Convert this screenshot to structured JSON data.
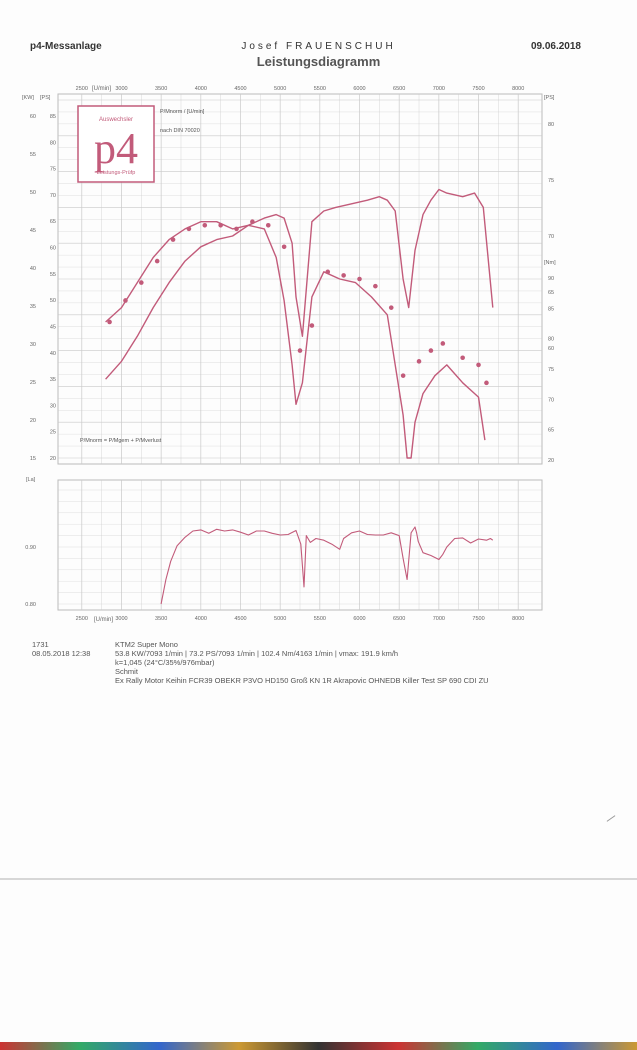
{
  "header": {
    "system": "p4-Messanlage",
    "company": "Josef FRAUENSCHUH",
    "title": "Leistungsdiagramm",
    "date": "09.06.2018"
  },
  "logo": {
    "text": "p4",
    "top_text": "Auswechsler",
    "bottom_text": "Leistungs-Prüfp"
  },
  "colors": {
    "curve": "#c25b7a",
    "grid": "#c9c9c9",
    "frame": "#bbbbbb"
  },
  "chart_data": [
    {
      "type": "line",
      "title": "Leistungsdiagramm",
      "legend": [
        "P/Mnorm / [U/min]",
        "nach DIN 70020"
      ],
      "formula": "P/Mnorm = P/Mgem + P/Mverlust",
      "x_unit": "[U/min]",
      "x_ticks": [
        "2500",
        "3000",
        "3500",
        "4000",
        "4500",
        "5000",
        "5500",
        "6000",
        "6500",
        "7000",
        "7500",
        "8000"
      ],
      "left_axis_units": [
        "[KW]",
        "[PS]"
      ],
      "left_axis_kw": [
        "15",
        "20",
        "25",
        "30",
        "35",
        "40",
        "45",
        "50",
        "55",
        "60"
      ],
      "left_axis_ps": [
        "20",
        "25",
        "30",
        "35",
        "40",
        "45",
        "50",
        "55",
        "60",
        "65",
        "70",
        "75",
        "80",
        "85"
      ],
      "right_axis_ps_unit": "[PS]",
      "right_axis_ps": [
        "60",
        "65",
        "70",
        "75",
        "80"
      ],
      "right_axis_nm_unit": "[Nm]",
      "right_axis_nm": [
        "20",
        "65",
        "70",
        "75",
        "80",
        "85",
        "90"
      ],
      "xlim": [
        2200,
        8300
      ],
      "ylim": [
        0,
        100
      ],
      "series": [
        {
          "label": "P",
          "x": [
            2800,
            3000,
            3200,
            3400,
            3600,
            3800,
            4000,
            4200,
            4400,
            4600,
            4800,
            4950,
            5050,
            5150,
            5200,
            5280,
            5400,
            5550,
            5700,
            5900,
            6100,
            6250,
            6350,
            6450,
            6550,
            6620,
            6700,
            6800,
            6900,
            7000,
            7100,
            7300,
            7450,
            7560,
            7680
          ],
          "y": [
            22,
            27,
            34,
            42,
            49,
            55,
            59,
            61,
            62,
            65,
            67,
            68,
            67,
            60,
            45,
            34,
            66,
            69,
            70,
            71,
            72,
            73,
            72,
            69,
            50,
            42,
            58,
            68,
            72,
            75,
            74,
            73,
            74,
            70,
            42
          ]
        },
        {
          "label": "M",
          "x": [
            2800,
            3000,
            3200,
            3400,
            3600,
            3800,
            4000,
            4200,
            4400,
            4600,
            4800,
            4950,
            5050,
            5150,
            5200,
            5280,
            5400,
            5550,
            5750,
            5950,
            6150,
            6350,
            6550,
            6600,
            6650,
            6700,
            6800,
            6950,
            7100,
            7300,
            7500,
            7580
          ],
          "y": [
            38,
            42,
            49,
            56,
            61,
            64,
            66,
            66,
            64,
            65,
            64,
            56,
            44,
            26,
            15,
            21,
            45,
            52,
            50,
            49,
            45,
            40,
            12,
            0,
            0,
            10,
            18,
            23,
            26,
            21,
            17,
            5
          ]
        }
      ],
      "points": [
        {
          "series": "M",
          "x": [
            2850,
            3050,
            3250,
            3450,
            3650,
            3850,
            4050,
            4250,
            4450,
            4650,
            4850,
            5050,
            5250,
            5400,
            5600,
            5800,
            6000,
            6200,
            6400,
            6550,
            6750,
            6900,
            7050,
            7300,
            7500,
            7600
          ],
          "y": [
            38,
            44,
            49,
            55,
            61,
            64,
            65,
            65,
            64,
            66,
            65,
            59,
            30,
            37,
            52,
            51,
            50,
            48,
            42,
            23,
            27,
            30,
            32,
            28,
            26,
            21
          ]
        }
      ]
    },
    {
      "type": "line",
      "ylabel": "[La]",
      "y_ticks": [
        "0.80",
        "0.90"
      ],
      "x_ticks": [
        "2500",
        "3000",
        "3500",
        "4000",
        "4500",
        "5000",
        "5500",
        "6000",
        "6500",
        "7000",
        "7500",
        "8000"
      ],
      "x_unit": "[U/min]",
      "xlim": [
        2200,
        8300
      ],
      "ylim": [
        0.8,
        1.0
      ],
      "series": [
        {
          "label": "La",
          "x": [
            3500,
            3560,
            3620,
            3700,
            3800,
            3900,
            4000,
            4100,
            4200,
            4300,
            4400,
            4500,
            4600,
            4700,
            4800,
            4900,
            5000,
            5100,
            5200,
            5260,
            5300,
            5330,
            5380,
            5450,
            5550,
            5650,
            5750,
            5800,
            5900,
            6000,
            6100,
            6200,
            6300,
            6400,
            6500,
            6550,
            6600,
            6650,
            6700,
            6720,
            6740,
            6800,
            6900,
            7000,
            7050,
            7100,
            7200,
            7300,
            7400,
            7500,
            7600,
            7650,
            7680
          ],
          "y": [
            0.8,
            0.843,
            0.875,
            0.902,
            0.917,
            0.928,
            0.93,
            0.924,
            0.931,
            0.928,
            0.93,
            0.926,
            0.921,
            0.928,
            0.928,
            0.924,
            0.921,
            0.922,
            0.929,
            0.905,
            0.83,
            0.92,
            0.908,
            0.915,
            0.912,
            0.905,
            0.896,
            0.915,
            0.925,
            0.928,
            0.922,
            0.921,
            0.921,
            0.925,
            0.92,
            0.88,
            0.843,
            0.925,
            0.935,
            0.925,
            0.91,
            0.89,
            0.885,
            0.878,
            0.887,
            0.9,
            0.915,
            0.916,
            0.907,
            0.914,
            0.912,
            0.915,
            0.912
          ]
        }
      ]
    }
  ],
  "info": {
    "id": "1731",
    "vehicle": "KTM2 Super Mono",
    "timestamp": "08.05.2018  12:38",
    "summary": "53.8 KW/7093 1/min  |  73.2 PS/7093 1/min  |  102.4 Nm/4163 1/min | vmax: 191.9 km/h",
    "conditions": "k=1,045 (24°C/35%/976mbar)",
    "customer": "Schmit",
    "notes": "Ex Rally Motor Keihin FCR39 OBEKR P3VO HD150 Groß KN 1R Akrapovic OHNEDB Killer Test SP  690 CDI ZU"
  }
}
